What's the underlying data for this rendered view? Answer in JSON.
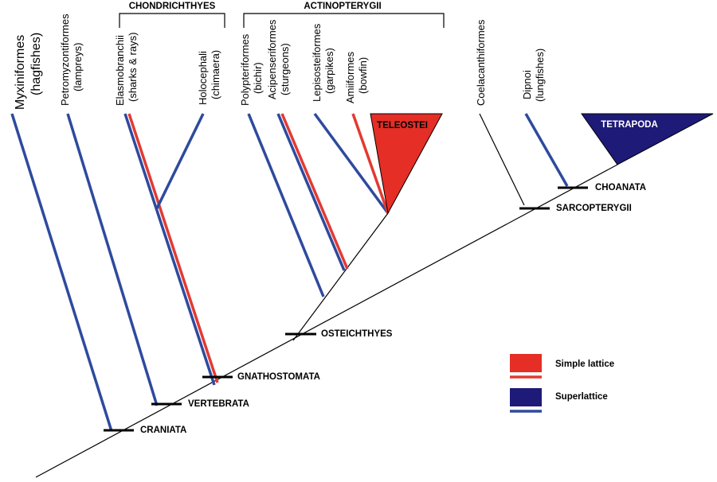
{
  "groups": [
    {
      "label": "CHONDRICHTHYES"
    },
    {
      "label": "ACTINOPTERYGII"
    }
  ],
  "taxa": [
    {
      "name": "Myxiniformes",
      "common": "(hagfishes)"
    },
    {
      "name": "Petromyzontiformes",
      "common": "(lampreys)"
    },
    {
      "name": "Elasmobranchii",
      "common": "(sharks & rays)"
    },
    {
      "name": "Holocephali",
      "common": "(chimaera)"
    },
    {
      "name": "Polypteriformes",
      "common": "(bichir)"
    },
    {
      "name": "Acipenseriformes",
      "common": "(sturgeons)"
    },
    {
      "name": "Lepisosteiformes",
      "common": "(garpikes)"
    },
    {
      "name": "Amiiformes",
      "common": "(bowfin)"
    },
    {
      "name": "Coelacanthiformes"
    },
    {
      "name": "Dipnoi",
      "common": "(lungfishes)"
    }
  ],
  "clades": [
    {
      "label": "TELEOSTEI"
    },
    {
      "label": "TETRAPODA"
    }
  ],
  "nodes": [
    {
      "label": "CRANIATA"
    },
    {
      "label": "VERTEBRATA"
    },
    {
      "label": "GNATHOSTOMATA"
    },
    {
      "label": "OSTEICHTHYES"
    },
    {
      "label": "SARCOPTERYGII"
    },
    {
      "label": "CHOANATA"
    }
  ],
  "legend": [
    {
      "label": "Simple lattice"
    },
    {
      "label": "Superlattice"
    }
  ]
}
